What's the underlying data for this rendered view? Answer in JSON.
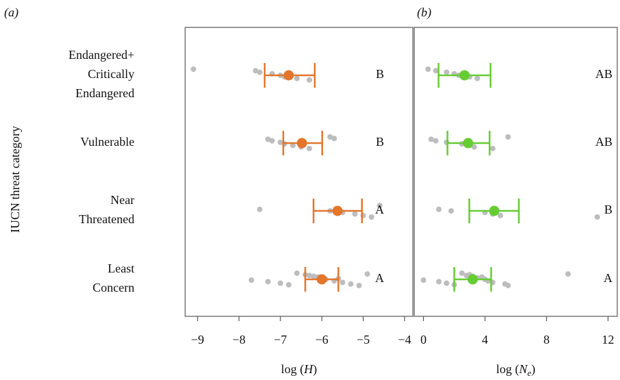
{
  "chart_data": [
    {
      "type": "dot",
      "panel_label": "(a)",
      "ylabel": "IUCN threat category",
      "categories": [
        [
          "Endangered+",
          "Critically",
          "Endangered"
        ],
        [
          "Vulnerable"
        ],
        [
          "Near",
          "Threatened"
        ],
        [
          "Least",
          "Concern"
        ]
      ],
      "xlabel": [
        "log (",
        "H",
        ")"
      ],
      "xlim": [
        -9.3,
        -3.8
      ],
      "xticks": [
        {
          "value": -9,
          "label": "−9"
        },
        {
          "value": -8,
          "label": "−8"
        },
        {
          "value": -7,
          "label": "−7"
        },
        {
          "value": -6,
          "label": "−6"
        },
        {
          "value": -5,
          "label": "−5"
        },
        {
          "value": -4,
          "label": "−4"
        }
      ],
      "color": "#e4762c",
      "point_color": "#bdbdbd",
      "groups": [
        {
          "mean": -6.8,
          "ci": [
            -7.38,
            -6.17
          ],
          "letter": "B",
          "points": [
            -9.1,
            -7.6,
            -7.5,
            -7.2,
            -7.0,
            -6.9,
            -6.6,
            -6.3
          ]
        },
        {
          "mean": -6.48,
          "ci": [
            -6.93,
            -5.99
          ],
          "letter": "B",
          "points": [
            -7.3,
            -7.2,
            -7.0,
            -6.9,
            -6.7,
            -6.5,
            -6.3,
            -5.8,
            -5.7
          ]
        },
        {
          "mean": -5.62,
          "ci": [
            -6.2,
            -5.03
          ],
          "letter": "A",
          "points": [
            -7.5,
            -5.8,
            -5.5,
            -5.2,
            -5.0,
            -4.8,
            -4.6
          ]
        },
        {
          "mean": -6.0,
          "ci": [
            -6.4,
            -5.6
          ],
          "letter": "A",
          "points": [
            -7.7,
            -7.3,
            -7.0,
            -6.8,
            -6.6,
            -6.4,
            -6.2,
            -6.0,
            -5.9,
            -5.7,
            -5.5,
            -5.3,
            -5.1,
            -4.9,
            -6.3,
            -6.1,
            -5.6
          ]
        }
      ]
    },
    {
      "type": "dot",
      "panel_label": "(b)",
      "xlabel": [
        "log (",
        "N",
        "e",
        ")"
      ],
      "xlim": [
        -0.6,
        12.6
      ],
      "xticks": [
        0,
        4,
        8,
        12
      ],
      "color": "#66cc33",
      "point_color": "#bdbdbd",
      "groups": [
        {
          "mean": 2.67,
          "ci": [
            0.98,
            4.36
          ],
          "letter": "AB",
          "points": [
            0.3,
            0.8,
            1.5,
            2.0,
            2.3,
            3.0,
            3.5
          ]
        },
        {
          "mean": 2.9,
          "ci": [
            1.56,
            4.3
          ],
          "letter": "AB",
          "points": [
            0.5,
            0.8,
            1.5,
            2.5,
            3.0,
            3.3,
            4.5,
            5.5
          ]
        },
        {
          "mean": 4.6,
          "ci": [
            2.98,
            6.2
          ],
          "letter": "B",
          "points": [
            1.0,
            1.8,
            4.0,
            4.5,
            5.0,
            11.3
          ]
        },
        {
          "mean": 3.2,
          "ci": [
            2.0,
            4.4
          ],
          "letter": "A",
          "points": [
            0.0,
            1.0,
            1.5,
            2.0,
            2.5,
            3.0,
            3.2,
            3.5,
            4.0,
            4.2,
            4.5,
            5.3,
            5.5,
            9.4,
            2.8,
            3.8
          ]
        }
      ]
    }
  ]
}
